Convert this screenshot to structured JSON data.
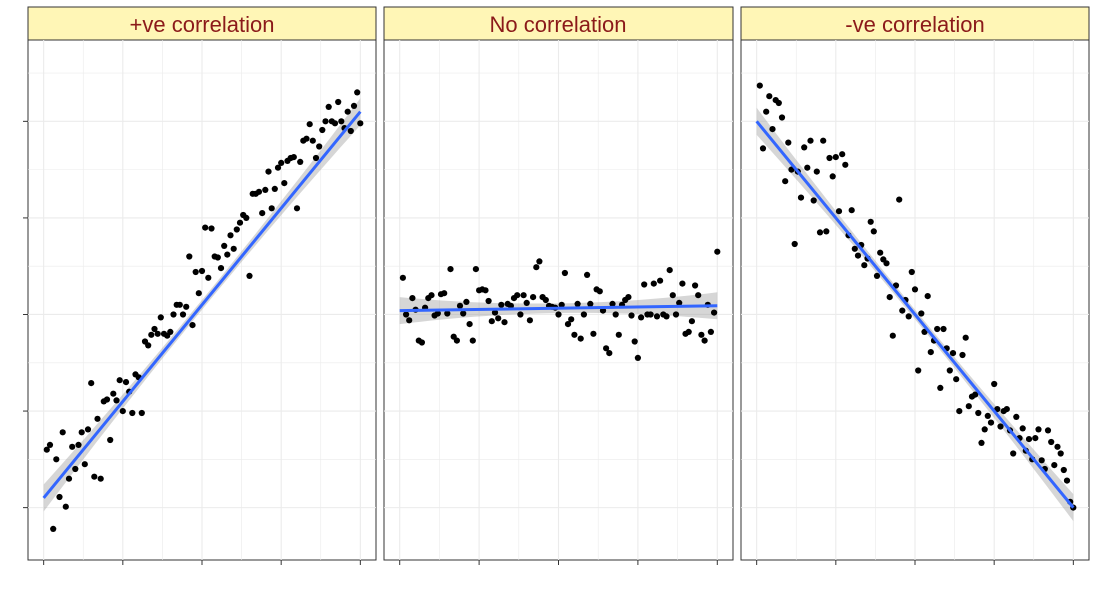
{
  "chart_data": [
    {
      "type": "scatter",
      "title": "+ve correlation",
      "trend": "linear-fit-with-confidence-band",
      "xlim": [
        0,
        100
      ],
      "ylim": [
        -0.3,
        4.6
      ],
      "fit": [
        0.1,
        4.1
      ],
      "x": [
        1,
        2,
        3,
        4,
        5,
        6,
        7,
        8,
        9,
        10,
        11,
        12,
        13,
        14,
        15,
        16,
        17,
        18,
        19,
        20,
        21,
        22,
        23,
        24,
        25,
        26,
        27,
        28,
        29,
        30,
        31,
        32,
        33,
        34,
        35,
        36,
        37,
        38,
        39,
        40,
        41,
        42,
        43,
        44,
        45,
        46,
        47,
        48,
        49,
        50,
        51,
        52,
        53,
        54,
        55,
        56,
        57,
        58,
        59,
        60,
        61,
        62,
        63,
        64,
        65,
        66,
        67,
        68,
        69,
        70,
        71,
        72,
        73,
        74,
        75,
        76,
        77,
        78,
        79,
        80,
        81,
        82,
        83,
        84,
        85,
        86,
        87,
        88,
        89,
        90,
        91,
        92,
        93,
        94,
        95,
        96,
        97,
        98,
        99,
        100
      ],
      "y": [
        0.6,
        0.65,
        -0.22,
        0.5,
        0.11,
        0.78,
        0.01,
        0.3,
        0.63,
        0.4,
        0.65,
        0.78,
        0.45,
        0.81,
        1.29,
        0.32,
        0.92,
        0.3,
        1.1,
        1.12,
        0.7,
        1.18,
        1.11,
        1.32,
        1.0,
        1.3,
        1.2,
        0.98,
        1.38,
        1.35,
        0.98,
        1.72,
        1.68,
        1.79,
        1.85,
        1.8,
        1.97,
        1.8,
        1.78,
        1.82,
        2.0,
        2.1,
        2.1,
        2.0,
        2.08,
        2.6,
        1.89,
        2.44,
        2.22,
        2.45,
        2.9,
        2.38,
        2.89,
        2.6,
        2.59,
        2.48,
        2.71,
        2.62,
        2.82,
        2.68,
        2.88,
        2.95,
        3.03,
        3.0,
        2.4,
        3.25,
        3.25,
        3.27,
        3.05,
        3.29,
        3.48,
        3.1,
        3.3,
        3.52,
        3.57,
        3.36,
        3.59,
        3.62,
        3.63,
        3.1,
        3.58,
        3.8,
        3.82,
        3.97,
        3.8,
        3.62,
        3.74,
        3.91,
        4.0,
        4.15,
        4.0,
        3.98,
        4.2,
        4.0,
        3.93,
        4.1,
        3.9,
        4.16,
        4.3,
        3.98
      ]
    },
    {
      "type": "scatter",
      "title": "No correlation",
      "trend": "linear-fit-with-confidence-band",
      "xlim": [
        0,
        100
      ],
      "ylim": [
        -0.3,
        4.6
      ],
      "fit": [
        2.04,
        2.09
      ],
      "x": [
        1,
        2,
        3,
        4,
        5,
        6,
        7,
        8,
        9,
        10,
        11,
        12,
        13,
        14,
        15,
        16,
        17,
        18,
        19,
        20,
        21,
        22,
        23,
        24,
        25,
        26,
        27,
        28,
        29,
        30,
        31,
        32,
        33,
        34,
        35,
        36,
        37,
        38,
        39,
        40,
        41,
        42,
        43,
        44,
        45,
        46,
        47,
        48,
        49,
        50,
        51,
        52,
        53,
        54,
        55,
        56,
        57,
        58,
        59,
        60,
        61,
        62,
        63,
        64,
        65,
        66,
        67,
        68,
        69,
        70,
        71,
        72,
        73,
        74,
        75,
        76,
        77,
        78,
        79,
        80,
        81,
        82,
        83,
        84,
        85,
        86,
        87,
        88,
        89,
        90,
        91,
        92,
        93,
        94,
        95,
        96,
        97,
        98,
        99,
        100
      ],
      "y": [
        2.38,
        2.0,
        1.94,
        2.17,
        2.05,
        1.73,
        1.71,
        2.07,
        2.17,
        2.2,
        1.99,
        2.01,
        2.21,
        2.22,
        2.01,
        2.47,
        1.77,
        1.73,
        2.09,
        2.01,
        2.13,
        1.9,
        1.73,
        2.47,
        2.25,
        2.26,
        2.25,
        2.14,
        1.93,
        2.02,
        1.96,
        2.1,
        1.92,
        2.11,
        2.09,
        2.17,
        2.2,
        2.0,
        2.2,
        2.12,
        1.94,
        2.18,
        2.49,
        2.55,
        2.18,
        2.15,
        2.09,
        2.08,
        2.07,
        2.0,
        2.1,
        2.43,
        1.9,
        1.95,
        1.79,
        2.11,
        1.75,
        2.0,
        2.41,
        2.11,
        1.8,
        2.26,
        2.24,
        2.04,
        1.65,
        1.6,
        2.11,
        2.0,
        1.79,
        2.1,
        2.15,
        2.18,
        1.99,
        1.72,
        1.55,
        1.97,
        2.31,
        2.0,
        2.0,
        2.32,
        1.98,
        2.35,
        2.0,
        1.98,
        2.46,
        2.2,
        2.0,
        2.12,
        2.32,
        1.8,
        1.82,
        1.93,
        2.3,
        2.2,
        1.79,
        1.73,
        2.1,
        1.82,
        2.02,
        2.65
      ]
    },
    {
      "type": "scatter",
      "title": "-ve correlation",
      "trend": "linear-fit-with-confidence-band",
      "xlim": [
        0,
        100
      ],
      "ylim": [
        -0.3,
        4.6
      ],
      "fit": [
        4.0,
        0.0
      ],
      "x": [
        1,
        2,
        3,
        4,
        5,
        6,
        7,
        8,
        9,
        10,
        11,
        12,
        13,
        14,
        15,
        16,
        17,
        18,
        19,
        20,
        21,
        22,
        23,
        24,
        25,
        26,
        27,
        28,
        29,
        30,
        31,
        32,
        33,
        34,
        35,
        36,
        37,
        38,
        39,
        40,
        41,
        42,
        43,
        44,
        45,
        46,
        47,
        48,
        49,
        50,
        51,
        52,
        53,
        54,
        55,
        56,
        57,
        58,
        59,
        60,
        61,
        62,
        63,
        64,
        65,
        66,
        67,
        68,
        69,
        70,
        71,
        72,
        73,
        74,
        75,
        76,
        77,
        78,
        79,
        80,
        81,
        82,
        83,
        84,
        85,
        86,
        87,
        88,
        89,
        90,
        91,
        92,
        93,
        94,
        95,
        96,
        97,
        98,
        99,
        100
      ],
      "y": [
        4.37,
        3.72,
        4.1,
        4.26,
        3.92,
        4.22,
        4.19,
        4.04,
        3.38,
        3.78,
        3.5,
        2.73,
        3.48,
        3.21,
        3.73,
        3.52,
        3.8,
        3.18,
        3.48,
        2.85,
        3.8,
        2.86,
        3.62,
        3.43,
        3.63,
        3.07,
        3.66,
        3.55,
        2.82,
        3.08,
        2.68,
        2.61,
        2.72,
        2.51,
        2.58,
        2.96,
        2.86,
        2.4,
        2.64,
        2.57,
        2.53,
        2.18,
        1.78,
        2.3,
        3.19,
        2.04,
        2.15,
        1.98,
        2.44,
        2.26,
        1.42,
        2.01,
        1.82,
        2.19,
        1.61,
        1.73,
        1.85,
        1.24,
        1.85,
        1.65,
        1.42,
        1.6,
        1.33,
        1.0,
        1.58,
        1.76,
        1.05,
        1.15,
        1.17,
        0.98,
        0.67,
        0.81,
        0.95,
        0.88,
        1.28,
        1.02,
        0.84,
        1.0,
        1.02,
        0.8,
        0.56,
        0.94,
        0.72,
        0.82,
        0.59,
        0.71,
        0.5,
        0.72,
        0.81,
        0.49,
        0.4,
        0.8,
        0.68,
        0.44,
        0.63,
        0.56,
        0.39,
        0.28,
        0.06,
        0.0
      ]
    }
  ]
}
